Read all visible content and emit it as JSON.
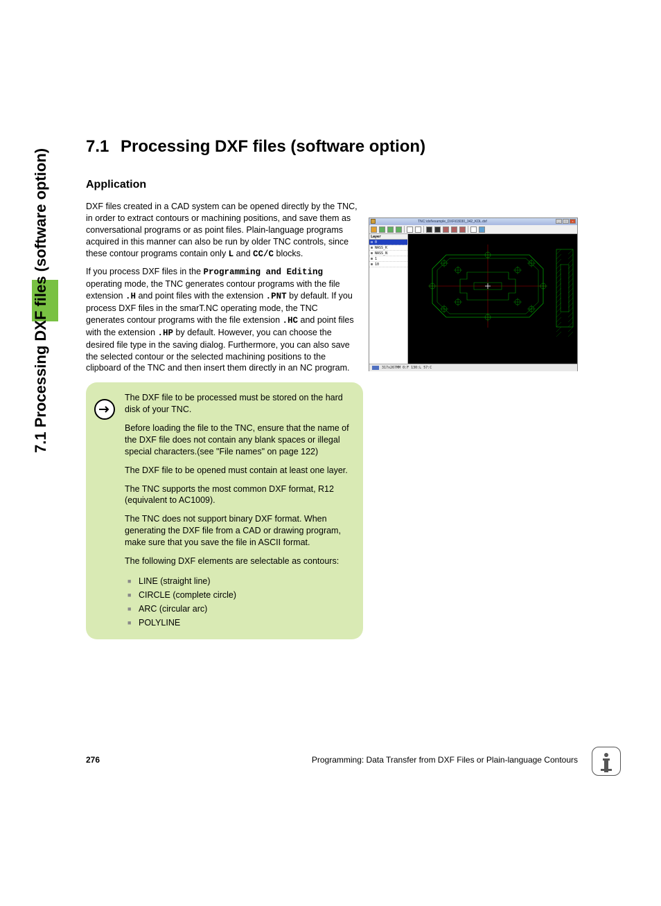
{
  "sidebar_label": "7.1 Processing DXF files (software option)",
  "heading": {
    "num": "7.1",
    "title": "Processing DXF files (software option)"
  },
  "sub_heading": "Application",
  "para1_a": "DXF files created in a CAD system can be opened directly by the TNC, in order to extract contours or machining positions, and save them as conversational programs or as point files. Plain-language programs acquired in this manner can also be run by older TNC controls, since these contour programs contain only ",
  "para1_l": "L",
  "para1_b": " and ",
  "para1_cc": "CC/C",
  "para1_c": " blocks.",
  "para2_a": "If you process DXF files in the ",
  "para2_pe": "Programming and Editing",
  "para2_b": " operating mode, the TNC generates contour programs with the file extension ",
  "para2_h": ".H",
  "para2_c": " and point files with the extension ",
  "para2_pnt": ".PNT",
  "para2_d": " by default. If you process DXF files in the smarT.NC operating mode, the TNC generates contour programs with the file extension ",
  "para2_hc": ".HC",
  "para2_e": " and point files with the extension ",
  "para2_hp": ".HP",
  "para2_f": " by default. However, you can choose the desired file type in the saving dialog. Furthermore, you can also save the selected contour or the selected machining positions to the clipboard of the TNC and then insert them directly in an NC program.",
  "note": {
    "p1": "The DXF file to be processed must be stored on the hard disk of your TNC.",
    "p2": "Before loading the file to the TNC, ensure that the name of the DXF file does not contain any blank spaces or illegal special characters.(see \"File names\" on page 122)",
    "p3": "The DXF file to be opened must contain at least one layer.",
    "p4": "The TNC supports the most common DXF format, R12 (equivalent to AC1009).",
    "p5": "The TNC does not support binary DXF format. When generating the DXF file from a CAD or drawing program, make sure that you save the file in ASCII format.",
    "p6": "The following DXF elements are selectable as contours:",
    "items": [
      "LINE (straight line)",
      "CIRCLE (complete circle)",
      "ARC (circular arc)",
      "POLYLINE"
    ]
  },
  "screenshot": {
    "title": "TNC:\\dxf\\example_DXF\\03030_342_KDL.dxf",
    "toolbar_icon_colors": [
      "#e0a030",
      "#60b060",
      "#60b060",
      "#60b060",
      "#ffffff",
      "#ffffff",
      "#303030",
      "#303030",
      "#b06060",
      "#b06060",
      "#b06060",
      "#ffffff",
      "#60a0d0"
    ],
    "layer_header": "Layer",
    "layers": [
      {
        "name": "0",
        "selected": true
      },
      {
        "name": "NASS_K",
        "selected": false
      },
      {
        "name": "NASS_N",
        "selected": false
      },
      {
        "name": "1",
        "selected": false
      },
      {
        "name": "10",
        "selected": false
      }
    ],
    "cad": {
      "stroke_main": "#00a000",
      "stroke_axis": "#b00000",
      "stroke_hatch": "#00a000",
      "background": "#000000"
    },
    "status": "317x267MM  0:F  130:L  57:C"
  },
  "footer": {
    "page": "276",
    "text": "Programming: Data Transfer from DXF Files or Plain-language Contours"
  }
}
